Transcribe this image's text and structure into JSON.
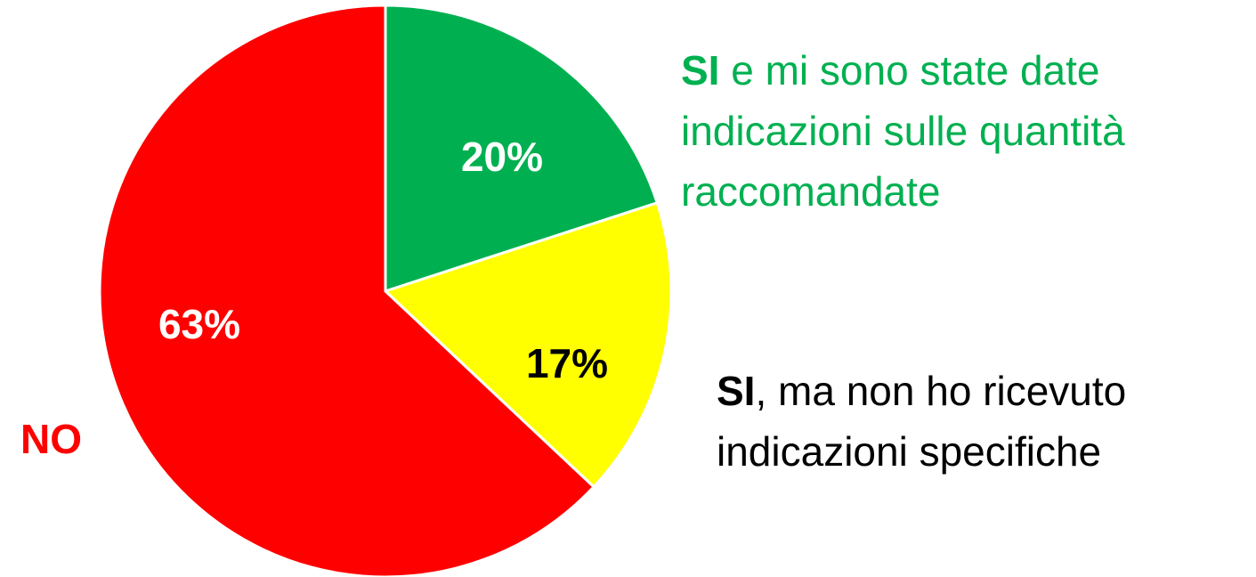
{
  "chart_data": {
    "type": "pie",
    "categories": [
      "SI e mi sono state date indicazioni sulle quantità raccomandate",
      "SI, ma non ho ricevuto indicazioni specifiche",
      "NO"
    ],
    "values": [
      20,
      17,
      63
    ],
    "value_labels": [
      "20%",
      "17%",
      "63%"
    ],
    "colors": [
      "#00b050",
      "#ffff00",
      "#ff0000"
    ],
    "label_colors": [
      "#00b050",
      "#000000",
      "#ff0000"
    ]
  }
}
